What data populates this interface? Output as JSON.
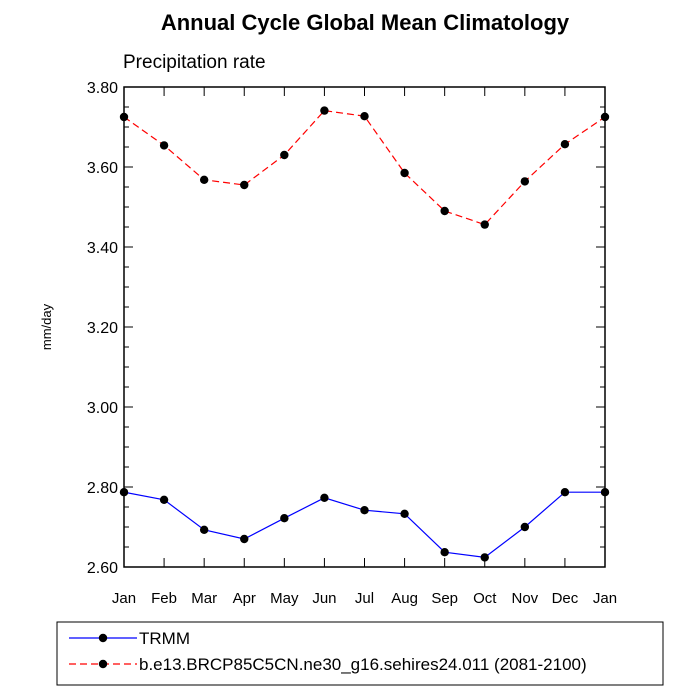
{
  "chart_data": {
    "type": "line",
    "title": "Annual Cycle Global Mean Climatology",
    "subtitle": "Precipitation rate",
    "xlabel": "",
    "ylabel": "mm/day",
    "ylim": [
      2.6,
      3.8
    ],
    "yticks": [
      "2.60",
      "2.80",
      "3.00",
      "3.20",
      "3.40",
      "3.60",
      "3.80"
    ],
    "categories": [
      "Jan",
      "Feb",
      "Mar",
      "Apr",
      "May",
      "Jun",
      "Jul",
      "Aug",
      "Sep",
      "Oct",
      "Nov",
      "Dec",
      "Jan"
    ],
    "grid": false,
    "legend_position": "bottom",
    "series": [
      {
        "name": "TRMM",
        "color": "#0000ff",
        "dash": "solid",
        "values": [
          2.787,
          2.768,
          2.693,
          2.67,
          2.722,
          2.773,
          2.742,
          2.733,
          2.637,
          2.624,
          2.7,
          2.787,
          2.787
        ]
      },
      {
        "name": "b.e13.BRCP85C5CN.ne30_g16.sehires24.011 (2081-2100)",
        "color": "#ff0000",
        "dash": "dashed",
        "values": [
          3.725,
          3.654,
          3.568,
          3.555,
          3.63,
          3.741,
          3.727,
          3.585,
          3.49,
          3.456,
          3.564,
          3.657,
          3.725
        ]
      }
    ]
  }
}
